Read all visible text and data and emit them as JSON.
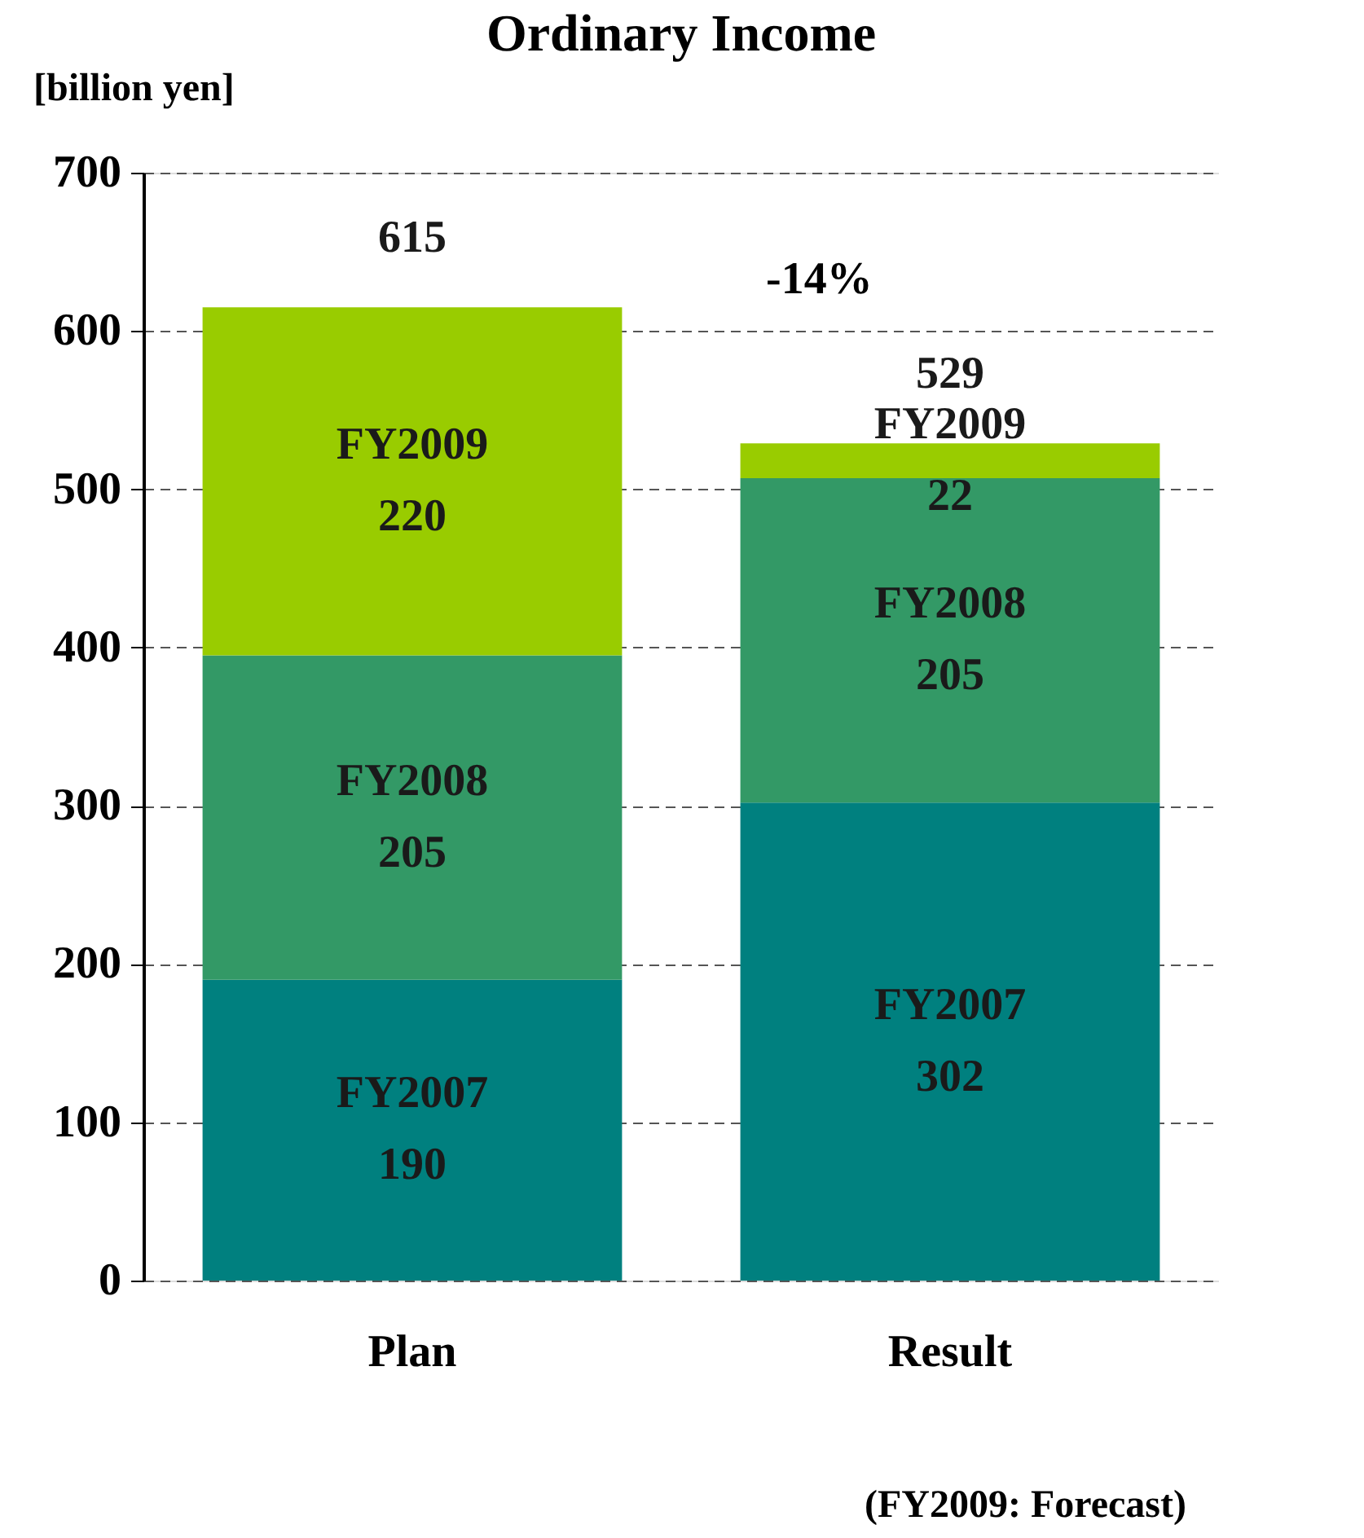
{
  "chart_data": {
    "type": "bar",
    "title": "Ordinary Income",
    "ylabel": "[billion yen]",
    "categories": [
      "Plan",
      "Result"
    ],
    "series": [
      {
        "name": "FY2007",
        "color": "#00807f",
        "values": [
          190,
          302
        ]
      },
      {
        "name": "FY2008",
        "color": "#339966",
        "values": [
          205,
          205
        ]
      },
      {
        "name": "FY2009",
        "color": "#99cc00",
        "values": [
          220,
          22
        ]
      }
    ],
    "stacked": true,
    "data_labels": true,
    "totals": [
      "615",
      "529"
    ],
    "ylim": [
      0,
      700
    ],
    "yticks": [
      0,
      100,
      200,
      300,
      400,
      500,
      600,
      700
    ],
    "grid": "y",
    "legend": false,
    "annotations": [
      "-14%",
      "(FY2009: Forecast)"
    ]
  }
}
